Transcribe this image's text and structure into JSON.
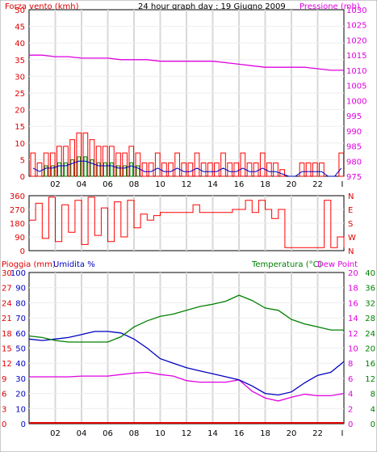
{
  "header": {
    "title": "24 hour graph day : 19 Giugno 2009",
    "wind_title": "Forza vento (kmh)",
    "pressure_title": "Pressione (mb)",
    "rain_title": "Pioggia (mm)",
    "humidity_title": "Umidita %",
    "temperature_title": "Temperatura (°C)",
    "dewpoint_title": "Dew Point"
  },
  "colors": {
    "wind": "#ff0000",
    "gust_bars": "#ff0000",
    "avg_bars": "#008000",
    "avg_line": "#0000c0",
    "pressure": "#e000e0",
    "direction": "#ff0000",
    "humidity": "#0000c0",
    "temperature": "#008000",
    "dewpoint": "#e000e0",
    "rain": "#e00000",
    "grid": "#d8d8d8"
  },
  "chart_data": [
    {
      "type": "bar",
      "title": "24 hour graph day : 19 Giugno 2009",
      "x_ticks": [
        "02",
        "04",
        "06",
        "08",
        "10",
        "12",
        "14",
        "16",
        "18",
        "20",
        "22",
        "I"
      ],
      "x_range_hours": [
        0,
        24
      ],
      "left_axis": {
        "label": "Forza vento (kmh)",
        "ticks": [
          0,
          5,
          10,
          15,
          20,
          25,
          30,
          35,
          40,
          45,
          50
        ],
        "ylim": [
          0,
          50
        ]
      },
      "right_axis": {
        "label": "Pressione (mb)",
        "ticks": [
          975,
          980,
          985,
          990,
          995,
          1000,
          1005,
          1010,
          1015,
          1020,
          1025,
          1030
        ],
        "ylim": [
          975,
          1030
        ]
      },
      "series": [
        {
          "name": "Forza vento (kmh)",
          "type": "bar",
          "x": [
            0.3,
            0.8,
            1.3,
            1.8,
            2.3,
            2.8,
            3.3,
            3.8,
            4.3,
            4.8,
            5.3,
            5.8,
            6.3,
            6.8,
            7.3,
            7.8,
            8.3,
            8.8,
            9.3,
            9.8,
            10.3,
            10.8,
            11.3,
            11.8,
            12.3,
            12.8,
            13.3,
            13.8,
            14.3,
            14.8,
            15.3,
            15.8,
            16.3,
            16.8,
            17.3,
            17.8,
            18.3,
            18.8,
            19.3,
            19.8,
            20.3,
            20.8,
            21.3,
            21.8,
            22.3,
            22.8,
            23.3,
            23.8
          ],
          "values": [
            7,
            4,
            7,
            7,
            9,
            9,
            11,
            13,
            13,
            11,
            9,
            9,
            9,
            7,
            7,
            9,
            7,
            4,
            4,
            7,
            4,
            4,
            7,
            4,
            4,
            7,
            4,
            4,
            4,
            7,
            4,
            4,
            7,
            4,
            4,
            7,
            4,
            4,
            2,
            0,
            0,
            4,
            4,
            4,
            4,
            0,
            0,
            7
          ]
        },
        {
          "name": "Pressione (mb)",
          "type": "line",
          "x": [
            0,
            1,
            2,
            3,
            4,
            5,
            6,
            7,
            8,
            9,
            10,
            11,
            12,
            13,
            14,
            15,
            16,
            17,
            18,
            19,
            20,
            21,
            22,
            23,
            24
          ],
          "values": [
            1015,
            1015,
            1014.5,
            1014.5,
            1014,
            1014,
            1014,
            1013.5,
            1013.5,
            1013.5,
            1013,
            1013,
            1013,
            1013,
            1013,
            1012.5,
            1012,
            1011.5,
            1011,
            1011,
            1011,
            1011,
            1010.5,
            1010,
            1010
          ]
        }
      ]
    },
    {
      "type": "line",
      "title": "",
      "left_axis": {
        "label": "",
        "ticks": [
          0,
          90,
          180,
          270,
          360
        ],
        "ylim": [
          0,
          360
        ]
      },
      "right_axis": {
        "label": "",
        "ticks": [
          "N",
          "W",
          "S",
          "E",
          "N"
        ]
      },
      "series": [
        {
          "name": "",
          "x": [
            0,
            0.5,
            1,
            1.5,
            2,
            2.5,
            3,
            3.5,
            4,
            4.5,
            5,
            5.5,
            6,
            6.5,
            7,
            7.5,
            8,
            8.5,
            9,
            9.5,
            10,
            10.5,
            11,
            11.5,
            12,
            12.5,
            13,
            13.5,
            14,
            14.5,
            15,
            15.5,
            16,
            16.5,
            17,
            17.5,
            18,
            18.5,
            19,
            19.5,
            20,
            20.5,
            21,
            21.5,
            22,
            22.5,
            23,
            23.5,
            24
          ],
          "values": [
            200,
            310,
            80,
            350,
            60,
            300,
            120,
            330,
            40,
            350,
            100,
            280,
            60,
            320,
            90,
            330,
            150,
            240,
            200,
            230,
            250,
            250,
            250,
            250,
            250,
            300,
            250,
            250,
            250,
            250,
            250,
            270,
            270,
            330,
            250,
            330,
            270,
            210,
            270,
            20,
            20,
            20,
            20,
            20,
            20,
            330,
            20,
            90,
            20
          ]
        }
      ]
    },
    {
      "type": "line",
      "title": "",
      "x_ticks": [
        "02",
        "04",
        "06",
        "08",
        "10",
        "12",
        "14",
        "16",
        "18",
        "20",
        "22",
        "I"
      ],
      "left_axis_outer": {
        "label": "Pioggia (mm)",
        "ticks": [
          0,
          3,
          6,
          9,
          12,
          15,
          18,
          21,
          24,
          27,
          30
        ]
      },
      "left_axis_inner": {
        "label": "Umidita %",
        "ticks": [
          0,
          10,
          20,
          30,
          40,
          50,
          60,
          70,
          80,
          90,
          100
        ],
        "ylim": [
          0,
          100
        ]
      },
      "right_axis_inner": {
        "label": "Temperatura (°C)",
        "ticks": [
          0,
          4,
          8,
          12,
          16,
          20,
          24,
          28,
          32,
          36,
          40
        ],
        "ylim": [
          0,
          40
        ]
      },
      "right_axis_outer": {
        "label": "Dew Point",
        "ticks": [
          0,
          2,
          4,
          6,
          8,
          10,
          12,
          14,
          16,
          18,
          20
        ]
      },
      "series": [
        {
          "name": "Umidita %",
          "x": [
            0,
            1,
            2,
            3,
            4,
            5,
            6,
            7,
            8,
            9,
            10,
            11,
            12,
            13,
            14,
            15,
            16,
            17,
            18,
            19,
            20,
            21,
            22,
            23,
            24
          ],
          "values": [
            56,
            55,
            56,
            57,
            59,
            61,
            61,
            60,
            56,
            50,
            43,
            40,
            37,
            35,
            33,
            31,
            29,
            25,
            20,
            19,
            21,
            27,
            32,
            34,
            41
          ]
        },
        {
          "name": "Temperatura (°C)",
          "x": [
            0,
            1,
            2,
            3,
            4,
            5,
            6,
            7,
            8,
            9,
            10,
            11,
            12,
            13,
            14,
            15,
            16,
            17,
            18,
            19,
            20,
            21,
            22,
            23,
            24
          ],
          "values": [
            23.2,
            22.8,
            22.0,
            21.6,
            21.6,
            21.6,
            21.6,
            23.0,
            25.6,
            27.2,
            28.4,
            29.0,
            30.0,
            31.0,
            31.6,
            32.4,
            34.0,
            32.6,
            30.6,
            30.0,
            27.6,
            26.4,
            25.6,
            24.8,
            24.8
          ]
        },
        {
          "name": "Dew Point",
          "x": [
            0,
            1,
            2,
            3,
            4,
            5,
            6,
            7,
            8,
            9,
            10,
            11,
            12,
            13,
            14,
            15,
            16,
            17,
            18,
            19,
            20,
            21,
            22,
            23,
            24
          ],
          "values": [
            12.4,
            12.4,
            12.4,
            12.4,
            12.6,
            12.6,
            12.6,
            13.0,
            13.4,
            13.6,
            13.0,
            12.6,
            11.4,
            11.0,
            11.0,
            11.0,
            11.6,
            8.6,
            6.8,
            6.0,
            7.0,
            7.8,
            7.4,
            7.4,
            8.0
          ]
        },
        {
          "name": "Pioggia (mm)",
          "x": [
            0,
            24
          ],
          "values": [
            0,
            0
          ]
        }
      ]
    }
  ]
}
